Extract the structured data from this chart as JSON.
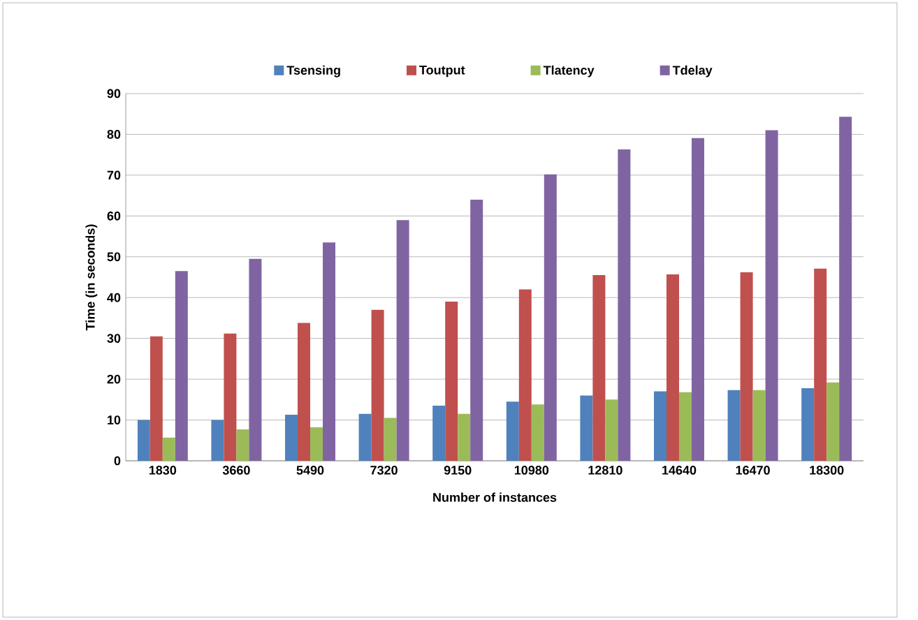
{
  "chart_data": {
    "type": "bar",
    "xlabel": "Number of instances",
    "ylabel": "Time (in seconds)",
    "categories": [
      "1830",
      "3660",
      "5490",
      "7320",
      "9150",
      "10980",
      "12810",
      "14640",
      "16470",
      "18300"
    ],
    "series": [
      {
        "name": "Tsensing",
        "color": "#4f81bd",
        "values": [
          10,
          10,
          11.3,
          11.5,
          13.5,
          14.5,
          16,
          17,
          17.3,
          17.8
        ]
      },
      {
        "name": "Toutput",
        "color": "#c0504d",
        "values": [
          30.5,
          31.2,
          33.8,
          37,
          39,
          42,
          45.5,
          45.7,
          46.2,
          47.1
        ]
      },
      {
        "name": "Tlatency",
        "color": "#9bbb59",
        "values": [
          5.7,
          7.7,
          8.2,
          10.5,
          11.5,
          13.8,
          15,
          16.8,
          17.3,
          19.2
        ]
      },
      {
        "name": "Tdelay",
        "color": "#8064a2",
        "values": [
          46.5,
          49.5,
          53.5,
          59,
          64,
          70.2,
          76.3,
          79.1,
          81,
          84.3
        ]
      }
    ],
    "ylim": [
      0,
      90
    ],
    "yticks": [
      0,
      10,
      20,
      30,
      40,
      50,
      60,
      70,
      80,
      90
    ],
    "grid": "y",
    "legend": "top"
  }
}
